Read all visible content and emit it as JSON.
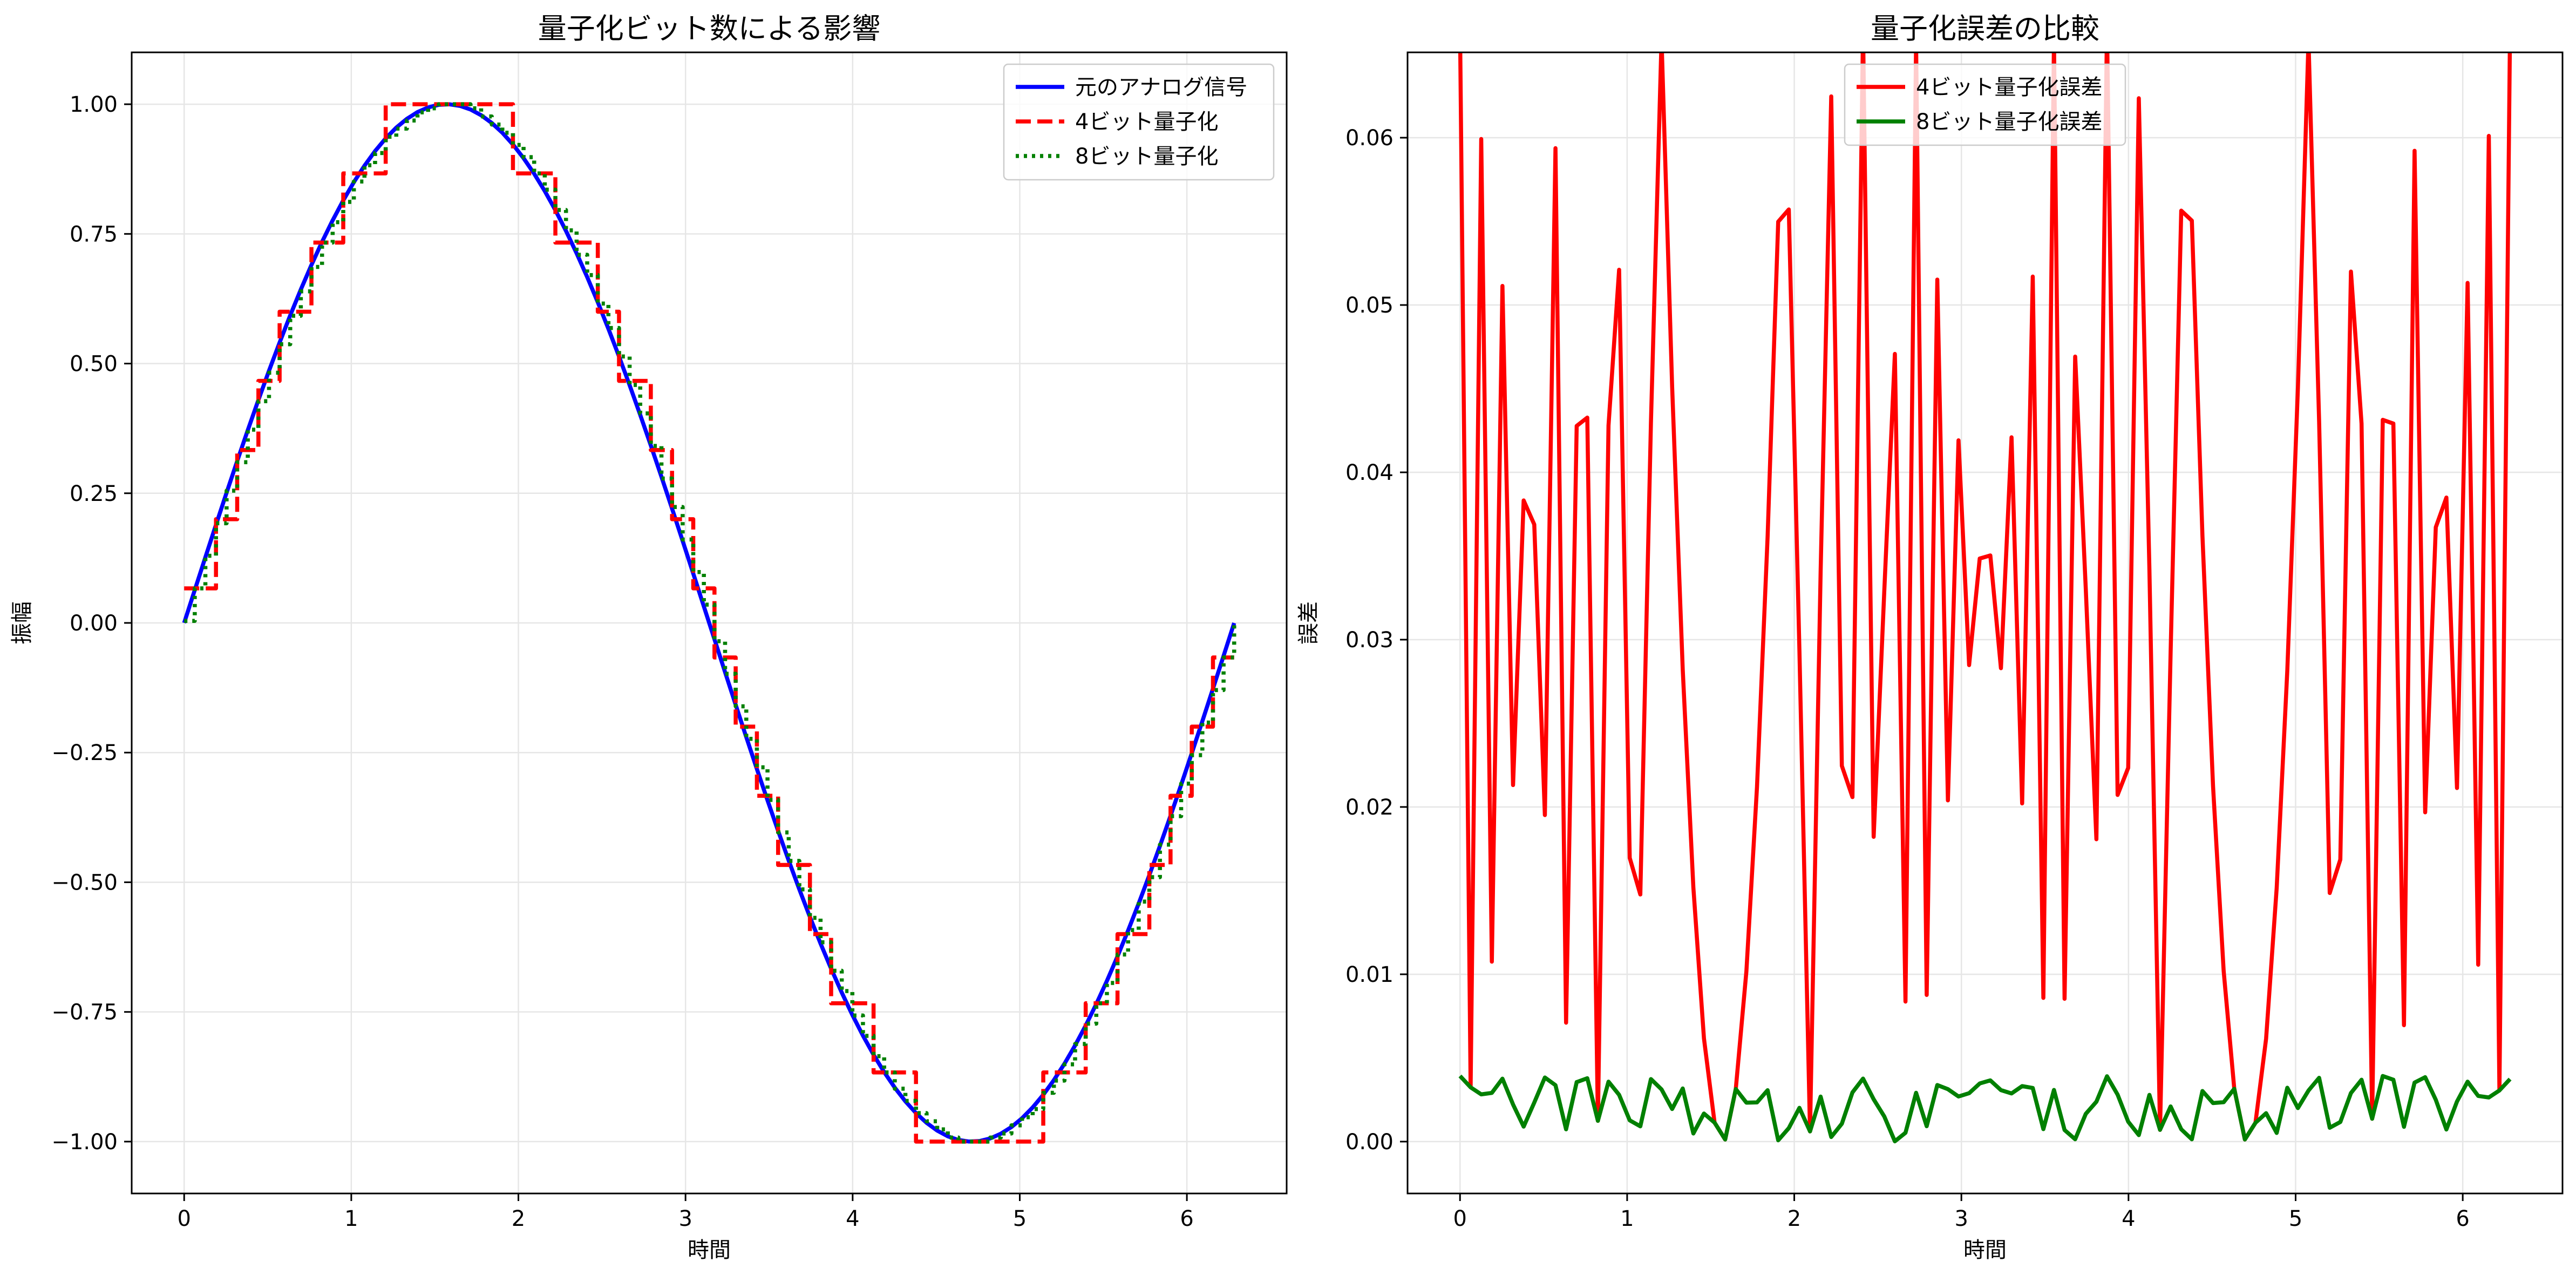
{
  "colors": {
    "analog": "#0000ff",
    "quant4": "#ff0000",
    "quant8": "#008000",
    "grid": "#e6e6e6",
    "axes": "#000000"
  },
  "chart_data": [
    {
      "type": "line",
      "title": "量子化ビット数による影響",
      "xlabel": "時間",
      "ylabel": "振幅",
      "xlim": [
        -0.314,
        6.597
      ],
      "ylim": [
        -1.1,
        1.1
      ],
      "xticks": [
        0,
        1,
        2,
        3,
        4,
        5,
        6
      ],
      "xtick_labels": [
        "0",
        "1",
        "2",
        "3",
        "4",
        "5",
        "6"
      ],
      "yticks": [
        -1.0,
        -0.75,
        -0.5,
        -0.25,
        0.0,
        0.25,
        0.5,
        0.75,
        1.0
      ],
      "ytick_labels": [
        "−1.00",
        "−0.75",
        "−0.50",
        "−0.25",
        "0.00",
        "0.25",
        "0.50",
        "0.75",
        "1.00"
      ],
      "grid": true,
      "legend_position": "upper right",
      "signal": {
        "function": "sin(t)",
        "t_start": 0,
        "t_end": 6.283,
        "samples": 100
      },
      "series": [
        {
          "name": "元のアナログ信号",
          "style": "solid",
          "color_key": "analog",
          "quantization_bits": 0
        },
        {
          "name": "4ビット量子化",
          "style": "dashed",
          "color_key": "quant4",
          "quantization_bits": 4
        },
        {
          "name": "8ビット量子化",
          "style": "dotted",
          "color_key": "quant8",
          "quantization_bits": 8
        }
      ]
    },
    {
      "type": "line",
      "title": "量子化誤差の比較",
      "xlabel": "時間",
      "ylabel": "誤差",
      "xlim": [
        -0.314,
        6.597
      ],
      "ylim": [
        -0.0031,
        0.0651
      ],
      "xticks": [
        0,
        1,
        2,
        3,
        4,
        5,
        6
      ],
      "xtick_labels": [
        "0",
        "1",
        "2",
        "3",
        "4",
        "5",
        "6"
      ],
      "yticks": [
        0.0,
        0.01,
        0.02,
        0.03,
        0.04,
        0.05,
        0.06
      ],
      "ytick_labels": [
        "0.00",
        "0.01",
        "0.02",
        "0.03",
        "0.04",
        "0.05",
        "0.06"
      ],
      "grid": true,
      "legend_position": "upper center",
      "signal": {
        "function": "sin(t)",
        "t_start": 0,
        "t_end": 6.283,
        "samples": 100
      },
      "series": [
        {
          "name": "4ビット量子化誤差",
          "style": "solid",
          "color_key": "quant4",
          "quantization_bits": 4
        },
        {
          "name": "8ビット量子化誤差",
          "style": "solid",
          "color_key": "quant8",
          "quantization_bits": 8
        }
      ]
    }
  ]
}
